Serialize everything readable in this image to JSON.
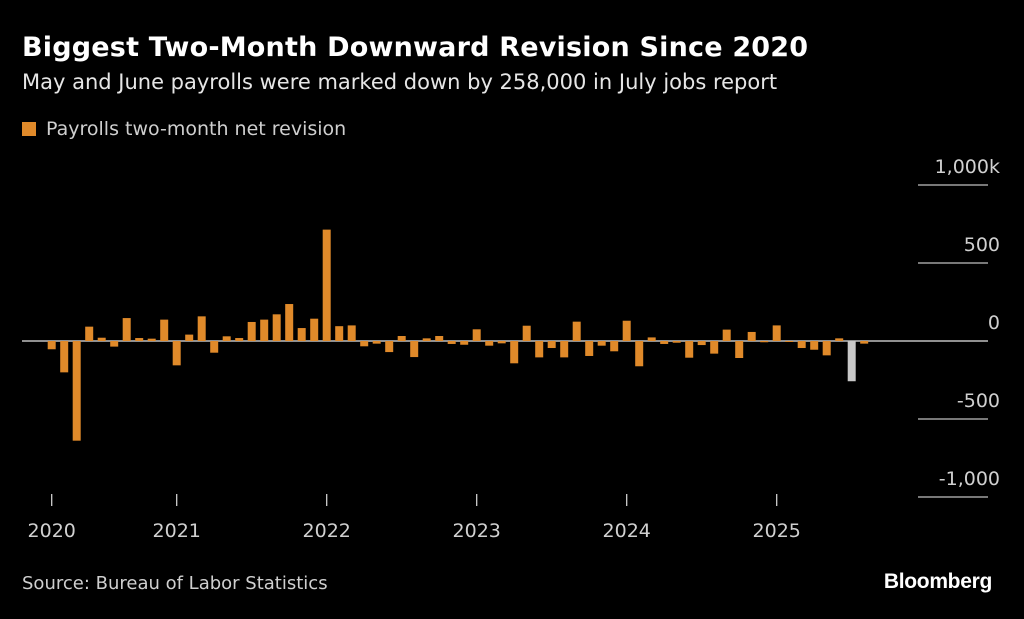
{
  "title": "Biggest Two-Month Downward Revision Since 2020",
  "subtitle": "May and June payrolls were marked down by 258,000 in July jobs report",
  "source": "Source: Bureau of Labor Statistics",
  "brand": "Bloomberg",
  "colors": {
    "series": "#e08a2a",
    "highlight": "#c8c8c8",
    "axis": "#bfbfbf"
  },
  "chart_data": {
    "type": "bar",
    "legend": [
      "Payrolls two-month net revision"
    ],
    "legend_placement": "top-left",
    "units": "thousands",
    "ylim": [
      -1000,
      1000
    ],
    "yticks": [
      1000,
      500,
      0,
      -500,
      -1000
    ],
    "ytick_labels": [
      "1,000k",
      "500",
      "0",
      "-500",
      "-1,000"
    ],
    "xtick_labels": [
      "2020",
      "2021",
      "2022",
      "2023",
      "2024",
      "2025"
    ],
    "grid": false,
    "start_month": "2020-03",
    "highlight_month": "2025-07",
    "values": [
      -53,
      -201,
      -639,
      92,
      21,
      -36,
      147,
      19,
      15,
      137,
      -156,
      41,
      158,
      -75,
      30,
      19,
      122,
      137,
      171,
      237,
      83,
      143,
      714,
      95,
      100,
      -34,
      -17,
      -71,
      32,
      -103,
      17,
      32,
      -19,
      -24,
      75,
      -30,
      -15,
      -143,
      98,
      -105,
      -45,
      -105,
      124,
      -96,
      -30,
      -66,
      130,
      -162,
      23,
      -19,
      -11,
      -107,
      -26,
      -81,
      73,
      -109,
      58,
      -8,
      100,
      -6,
      -45,
      -56,
      -92,
      17,
      -258,
      -17
    ]
  }
}
